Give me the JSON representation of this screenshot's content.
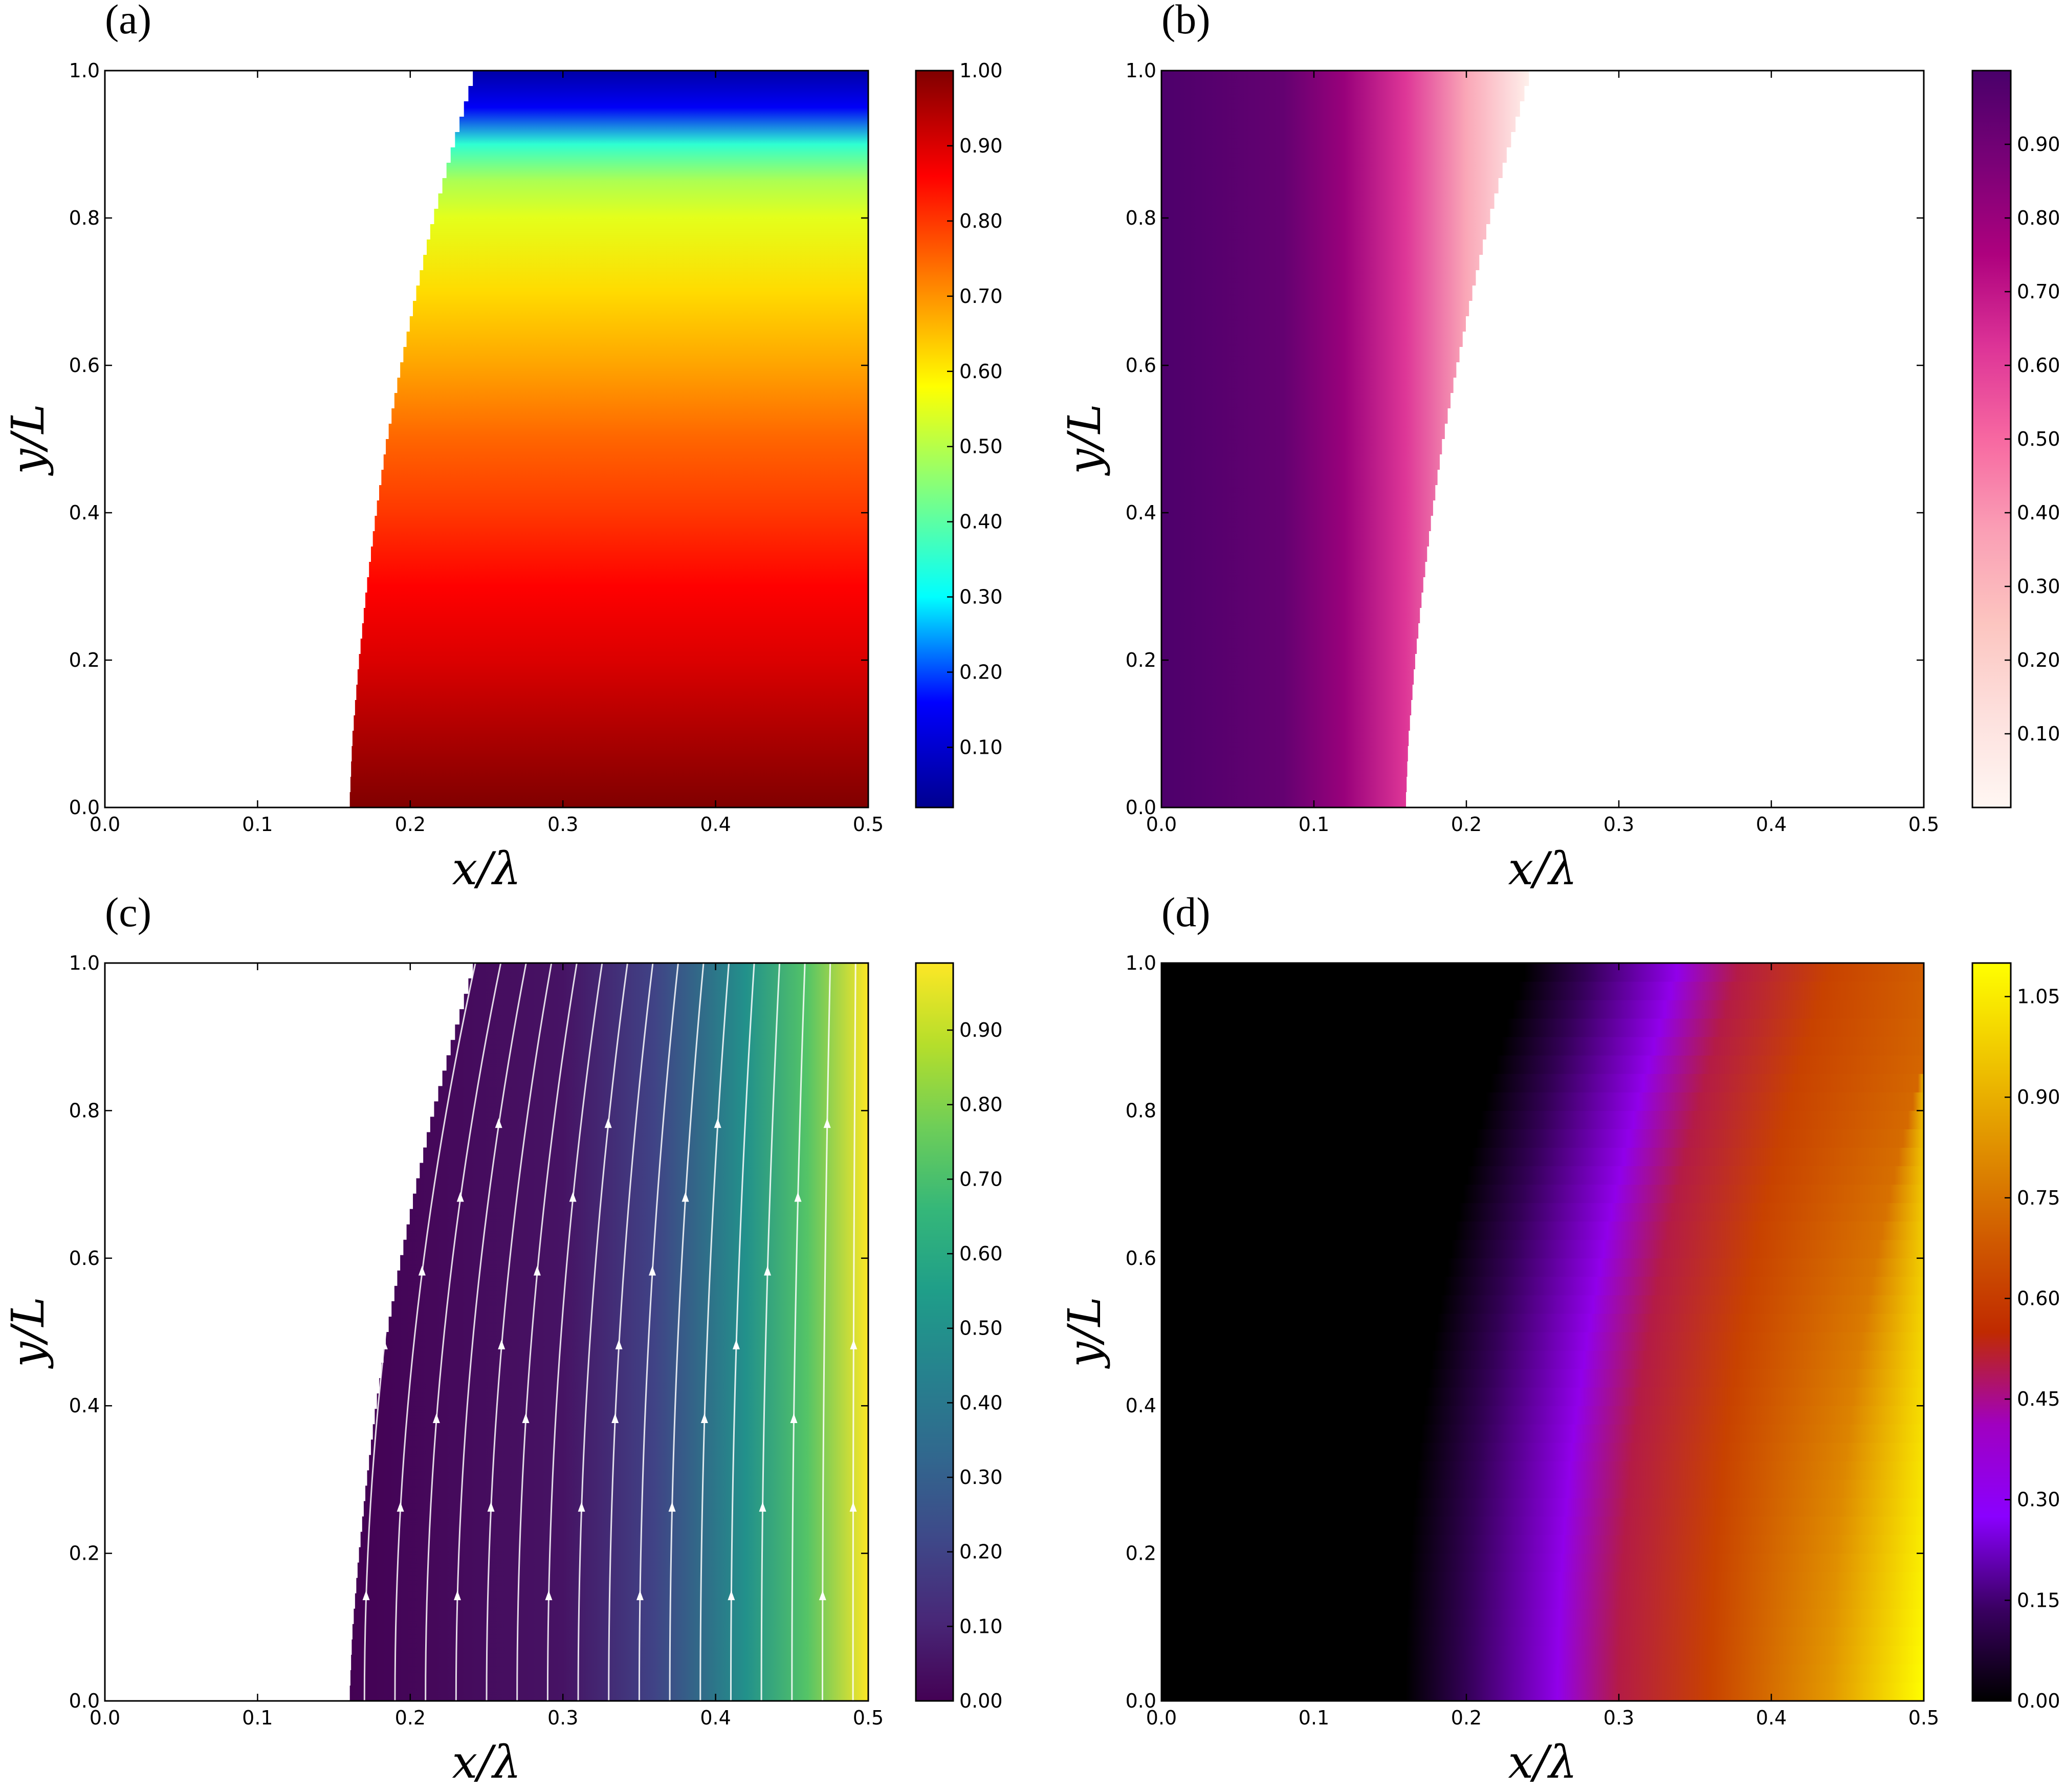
{
  "chart_data": [
    {
      "type": "heatmap",
      "panel_label": "(a)",
      "xlabel": "x/λ",
      "ylabel": "y/L",
      "xlim": [
        0.0,
        0.5
      ],
      "ylim": [
        0.0,
        1.0
      ],
      "xticks": [
        "0.0",
        "0.1",
        "0.2",
        "0.3",
        "0.4",
        "0.5"
      ],
      "yticks": [
        "0.0",
        "0.2",
        "0.4",
        "0.6",
        "0.8",
        "1.0"
      ],
      "colormap": "jet",
      "colorbar_range": [
        0.02,
        1.0
      ],
      "colorbar_ticks": [
        "0.10",
        "0.20",
        "0.30",
        "0.40",
        "0.50",
        "0.60",
        "0.70",
        "0.80",
        "0.90",
        "1.00"
      ],
      "field_region": "right",
      "boundary": {
        "y": [
          0.0,
          0.1,
          0.2,
          0.3,
          0.4,
          0.5,
          0.6,
          0.7,
          0.8,
          0.9,
          1.0
        ],
        "x": [
          0.16,
          0.162,
          0.166,
          0.171,
          0.177,
          0.184,
          0.193,
          0.203,
          0.214,
          0.227,
          0.241
        ]
      },
      "profile": {
        "y": [
          0.0,
          0.1,
          0.2,
          0.3,
          0.4,
          0.5,
          0.6,
          0.7,
          0.8,
          0.85,
          0.9,
          0.95,
          1.0
        ],
        "value": [
          1.0,
          0.95,
          0.9,
          0.86,
          0.8,
          0.75,
          0.68,
          0.62,
          0.55,
          0.49,
          0.35,
          0.15,
          0.05
        ]
      },
      "colorbar_colors": [
        "#00008f",
        "#0000ff",
        "#00ffff",
        "#80ff80",
        "#ffff00",
        "#ff8000",
        "#ff0000",
        "#800000"
      ]
    },
    {
      "type": "heatmap",
      "panel_label": "(b)",
      "xlabel": "x/λ",
      "ylabel": "y/L",
      "xlim": [
        0.0,
        0.5
      ],
      "ylim": [
        0.0,
        1.0
      ],
      "xticks": [
        "0.0",
        "0.1",
        "0.2",
        "0.3",
        "0.4",
        "0.5"
      ],
      "yticks": [
        "0.0",
        "0.2",
        "0.4",
        "0.6",
        "0.8",
        "1.0"
      ],
      "colormap": "RdPu",
      "colorbar_range": [
        0.0,
        1.0
      ],
      "colorbar_ticks": [
        "0.10",
        "0.20",
        "0.30",
        "0.40",
        "0.50",
        "0.60",
        "0.70",
        "0.80",
        "0.90"
      ],
      "field_region": "left",
      "boundary": {
        "y": [
          0.0,
          0.1,
          0.2,
          0.3,
          0.4,
          0.5,
          0.6,
          0.7,
          0.8,
          0.9,
          1.0
        ],
        "x": [
          0.16,
          0.162,
          0.166,
          0.171,
          0.177,
          0.184,
          0.193,
          0.203,
          0.214,
          0.227,
          0.241
        ]
      },
      "colorbar_colors": [
        "#fff7f3",
        "#fde0dd",
        "#fcc5c0",
        "#fa9fb5",
        "#f768a1",
        "#dd3497",
        "#ae017e",
        "#7a0177",
        "#49006a"
      ]
    },
    {
      "type": "heatmap",
      "panel_label": "(c)",
      "xlabel": "x/λ",
      "ylabel": "y/L",
      "xlim": [
        0.0,
        0.5
      ],
      "ylim": [
        0.0,
        1.0
      ],
      "xticks": [
        "0.0",
        "0.1",
        "0.2",
        "0.3",
        "0.4",
        "0.5"
      ],
      "yticks": [
        "0.0",
        "0.2",
        "0.4",
        "0.6",
        "0.8",
        "1.0"
      ],
      "colormap": "viridis",
      "colorbar_range": [
        0.0,
        0.99
      ],
      "colorbar_ticks": [
        "0.00",
        "0.10",
        "0.20",
        "0.30",
        "0.40",
        "0.50",
        "0.60",
        "0.70",
        "0.80",
        "0.90"
      ],
      "field_region": "right",
      "streamlines": true,
      "streamline_color": "#ffffff",
      "boundary": {
        "y": [
          0.0,
          0.1,
          0.2,
          0.3,
          0.4,
          0.5,
          0.6,
          0.7,
          0.8,
          0.9,
          1.0
        ],
        "x": [
          0.16,
          0.162,
          0.166,
          0.171,
          0.177,
          0.184,
          0.193,
          0.203,
          0.214,
          0.227,
          0.241
        ]
      },
      "colorbar_colors": [
        "#440154",
        "#482878",
        "#3e4989",
        "#31688e",
        "#26828e",
        "#1f9e89",
        "#35b779",
        "#6ece58",
        "#b5de2b",
        "#fde725"
      ]
    },
    {
      "type": "heatmap",
      "panel_label": "(d)",
      "xlabel": "x/λ",
      "ylabel": "y/L",
      "xlim": [
        0.0,
        0.5
      ],
      "ylim": [
        0.0,
        1.0
      ],
      "xticks": [
        "0.0",
        "0.1",
        "0.2",
        "0.3",
        "0.4",
        "0.5"
      ],
      "yticks": [
        "0.0",
        "0.2",
        "0.4",
        "0.6",
        "0.8",
        "1.0"
      ],
      "colormap": "gnuplot",
      "colorbar_range": [
        0.0,
        1.1
      ],
      "colorbar_ticks": [
        "0.00",
        "0.15",
        "0.30",
        "0.45",
        "0.60",
        "0.75",
        "0.90",
        "1.05"
      ],
      "field_region": "full",
      "colorbar_colors": [
        "#000000",
        "#3a0062",
        "#8a00ff",
        "#a000c0",
        "#c02a00",
        "#d05a00",
        "#e09000",
        "#f0c800",
        "#ffff00"
      ]
    }
  ]
}
